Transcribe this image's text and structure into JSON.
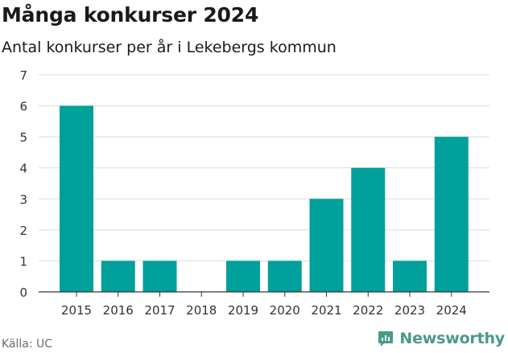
{
  "chart_data": {
    "type": "bar",
    "title": "Många konkurser 2024",
    "subtitle": "Antal konkurser per år i Lekebergs kommun",
    "categories": [
      "2015",
      "2016",
      "2017",
      "2018",
      "2019",
      "2020",
      "2021",
      "2022",
      "2023",
      "2024"
    ],
    "values": [
      6,
      1,
      1,
      0,
      1,
      1,
      3,
      4,
      1,
      5
    ],
    "ylim": [
      0,
      7
    ],
    "yticks": [
      "0",
      "1",
      "2",
      "3",
      "4",
      "5",
      "6",
      "7"
    ],
    "xlabel": "",
    "ylabel": "",
    "grid": true,
    "bar_color": "#00a19a",
    "grid_color": "#dcdcdc",
    "axis_color": "#333333"
  },
  "footer": {
    "source": "Källa: UC",
    "brand": "Newsworthy",
    "brand_color": "#4a9a8c",
    "brand_icon": "bar-chart-logo-icon"
  }
}
